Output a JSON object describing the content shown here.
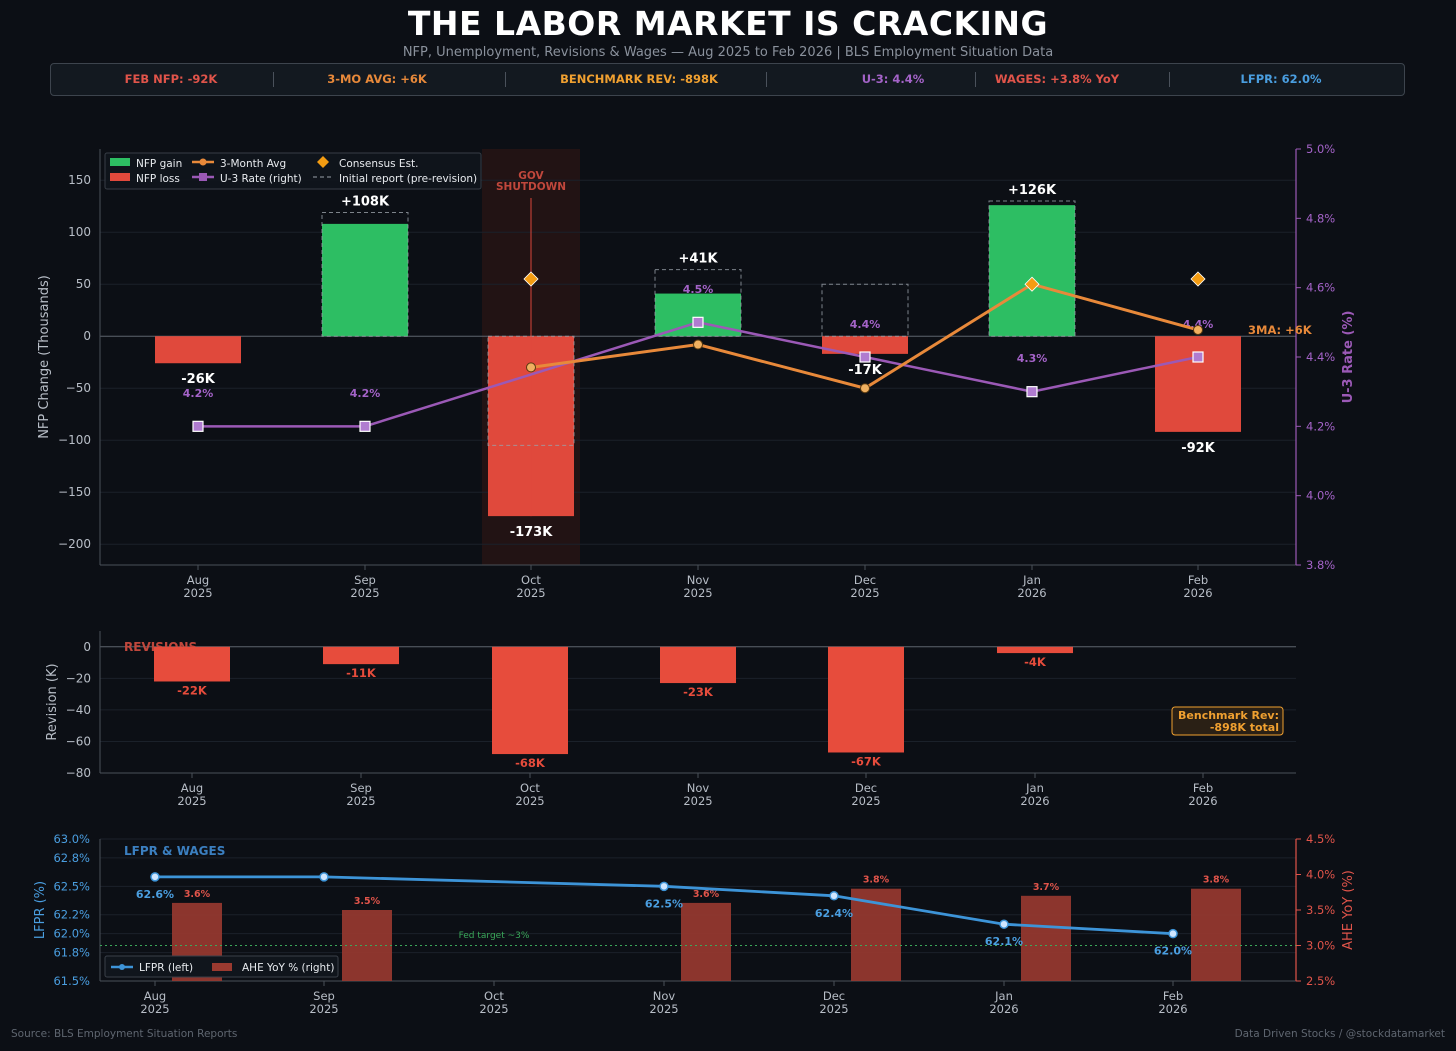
{
  "header": {
    "title": "THE LABOR MARKET IS CRACKING",
    "subtitle": "NFP, Unemployment, Revisions & Wages — Aug 2025 to Feb 2026 | BLS Employment Situation Data"
  },
  "kpis": [
    {
      "label": "FEB NFP: -92K",
      "color": "#e0544a"
    },
    {
      "label": "3-MO AVG: +6K",
      "color": "#e8893a"
    },
    {
      "label": "BENCHMARK REV: -898K",
      "color": "#f0a030"
    },
    {
      "label": "U-3: 4.4%",
      "color": "#a463c8"
    },
    {
      "label": "WAGES: +3.8% YoY",
      "color": "#e0544a"
    },
    {
      "label": "LFPR: 62.0%",
      "color": "#4a9ee0"
    }
  ],
  "footer": {
    "source": "Source: BLS Employment Situation Reports",
    "credit": "Data Driven Stocks / @stockdatamarket"
  },
  "chart_data": [
    {
      "type": "bar",
      "id": "nfp",
      "categories": [
        "Aug\n2025",
        "Sep\n2025",
        "Oct\n2025",
        "Nov\n2025",
        "Dec\n2025",
        "Jan\n2026",
        "Feb\n2026"
      ],
      "ylabel": "NFP Change (Thousands)",
      "y2label": "U-3 Rate (%)",
      "ylim": [
        -220,
        180
      ],
      "yticks": [
        150,
        100,
        50,
        0,
        -50,
        -100,
        -150,
        -200
      ],
      "ytick_labels": [
        "150",
        "100",
        "50",
        "0",
        "−50",
        "−100",
        "−150",
        "−200"
      ],
      "y2lim": [
        3.8,
        5.0
      ],
      "y2ticks": [
        5.0,
        4.8,
        4.6,
        4.4,
        4.2,
        4.0,
        3.8
      ],
      "y2tick_labels": [
        "5.0%",
        "4.8%",
        "4.6%",
        "4.4%",
        "4.2%",
        "4.0%",
        "3.8%"
      ],
      "nfp_values": [
        -26,
        108,
        -173,
        41,
        -17,
        126,
        -92
      ],
      "nfp_labels": [
        "-26K",
        "+108K",
        "-173K",
        "+41K",
        "-17K",
        "+126K",
        "-92K"
      ],
      "initial_report": [
        null,
        119,
        -105,
        64,
        50,
        130,
        null
      ],
      "three_month_avg": [
        null,
        null,
        -30,
        -8,
        -50,
        50,
        6
      ],
      "consensus": [
        null,
        null,
        55,
        null,
        null,
        50,
        55
      ],
      "u3_rate": [
        4.2,
        4.2,
        null,
        4.5,
        4.4,
        4.3,
        4.4
      ],
      "u3_labels": [
        "4.2%",
        "4.2%",
        null,
        "4.5%",
        "4.4%",
        "4.3%",
        "4.4%"
      ],
      "shutdown_label": [
        "GOV",
        "SHUTDOWN"
      ],
      "three_ma_annotation": "3MA: +6K",
      "legend": [
        "NFP gain",
        "NFP loss",
        "3-Month Avg",
        "U-3 Rate (right)",
        "Consensus Est.",
        "Initial report (pre-revision)"
      ],
      "colors": {
        "gain": "#2dbe63",
        "loss": "#e0493c",
        "avg": "#e8893a",
        "u3": "#9b59b6",
        "consensus": "#f39c12"
      }
    },
    {
      "type": "bar",
      "id": "revisions",
      "panel_title": "REVISIONS",
      "categories": [
        "Aug\n2025",
        "Sep\n2025",
        "Oct\n2025",
        "Nov\n2025",
        "Dec\n2025",
        "Jan\n2026",
        "Feb\n2026"
      ],
      "ylabel": "Revision (K)",
      "ylim": [
        -80,
        10
      ],
      "yticks": [
        0,
        -20,
        -40,
        -60,
        -80
      ],
      "ytick_labels": [
        "0",
        "−20",
        "−40",
        "−60",
        "−80"
      ],
      "values": [
        -22,
        -11,
        -68,
        -23,
        -67,
        -4,
        null
      ],
      "value_labels": [
        "-22K",
        "-11K",
        "-68K",
        "-23K",
        "-67K",
        "-4K",
        null
      ],
      "benchmark_box": [
        "Benchmark Rev:",
        "-898K total"
      ],
      "colors": {
        "bar": "#e74c3c",
        "box": "#f0a030"
      }
    },
    {
      "type": "line",
      "id": "lfpr_wages",
      "panel_title": "LFPR & WAGES",
      "categories": [
        "Aug\n2025",
        "Sep\n2025",
        "Oct\n2025",
        "Nov\n2025",
        "Dec\n2025",
        "Jan\n2026",
        "Feb\n2026"
      ],
      "ylabel": "LFPR (%)",
      "y2label": "AHE YoY (%)",
      "ylim": [
        61.5,
        63.0
      ],
      "yticks": [
        63.0,
        62.8,
        62.5,
        62.2,
        62.0,
        61.8,
        61.5
      ],
      "ytick_labels": [
        "63.0%",
        "62.8%",
        "62.5%",
        "62.2%",
        "62.0%",
        "61.8%",
        "61.5%"
      ],
      "y2lim": [
        2.5,
        4.5
      ],
      "y2ticks": [
        4.5,
        4.0,
        3.5,
        3.0,
        2.5
      ],
      "y2tick_labels": [
        "4.5%",
        "4.0%",
        "3.5%",
        "3.0%",
        "2.5%"
      ],
      "lfpr": [
        62.6,
        62.6,
        null,
        62.5,
        62.4,
        62.1,
        62.0
      ],
      "lfpr_labels": [
        "62.6%",
        null,
        null,
        "62.5%",
        "62.4%",
        "62.1%",
        "62.0%"
      ],
      "ahe_yoy": [
        3.6,
        3.5,
        null,
        3.6,
        3.8,
        3.7,
        3.8
      ],
      "ahe_labels": [
        "3.6%",
        "3.5%",
        null,
        "3.6%",
        "3.8%",
        "3.7%",
        "3.8%"
      ],
      "fed_target": 3.0,
      "fed_target_label": "Fed target ~3%",
      "legend": [
        "LFPR (left)",
        "AHE YoY % (right)"
      ],
      "colors": {
        "lfpr": "#3d94d8",
        "ahe": "#9a3a30",
        "ahe_label": "#e0544a",
        "fed": "#3aa85a"
      }
    }
  ]
}
